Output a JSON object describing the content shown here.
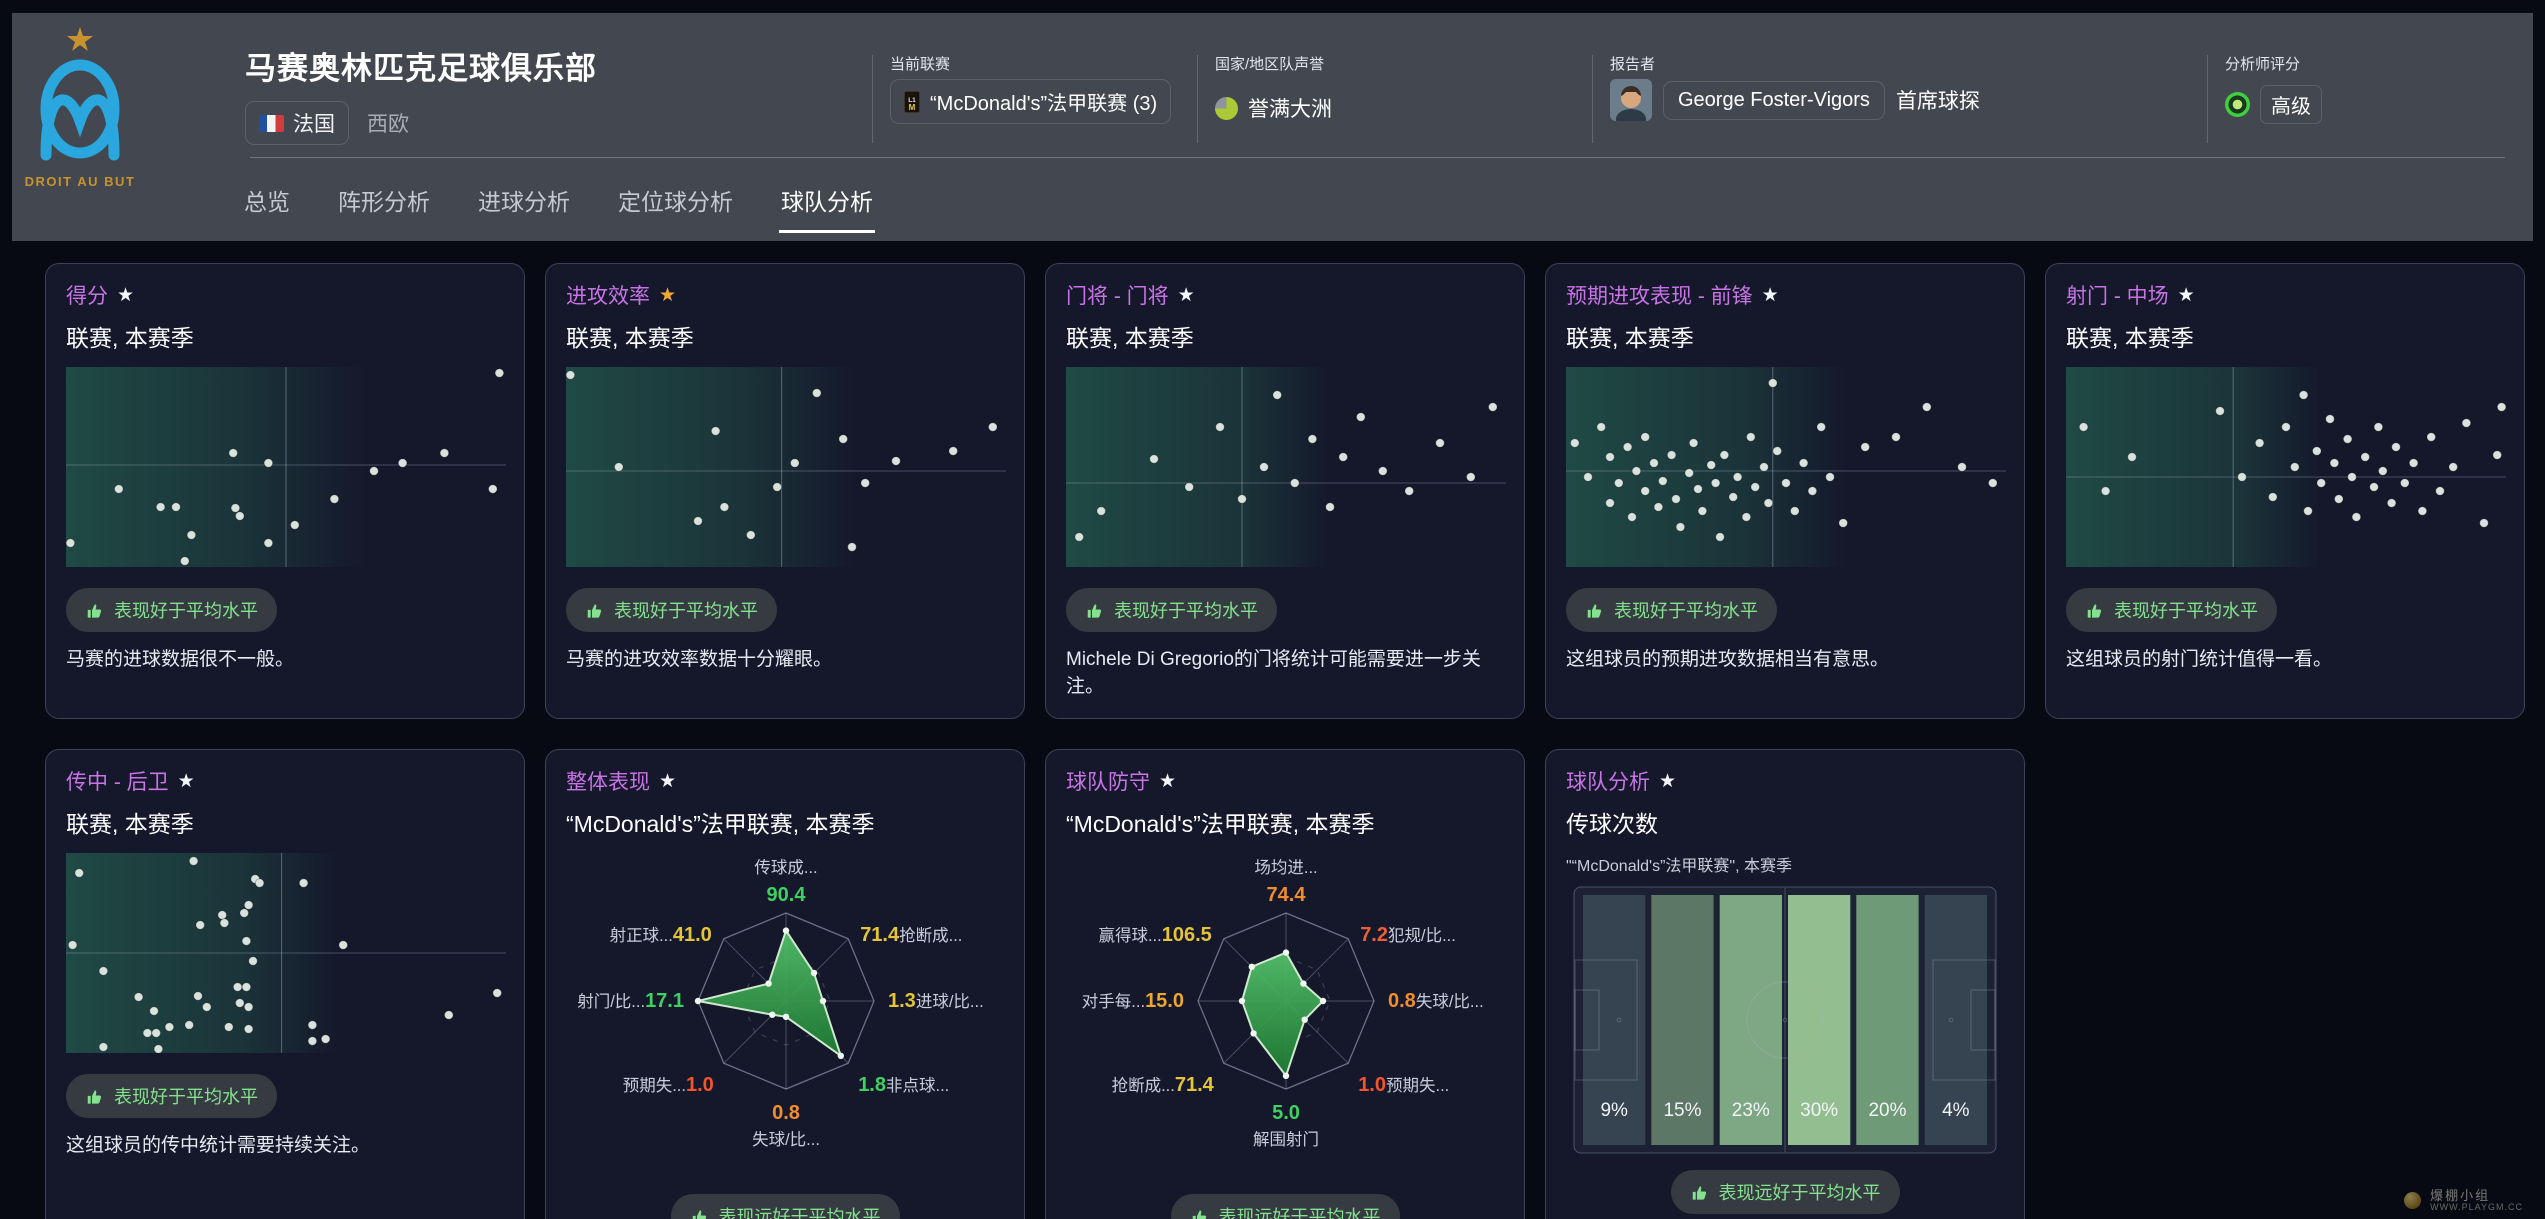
{
  "header": {
    "club_name": "马赛奥林匹克足球俱乐部",
    "motto": "DROIT AU BUT",
    "country": "法国",
    "region": "西欧",
    "sections": {
      "current_league": {
        "label": "当前联赛",
        "value": "“McDonald's”法甲联赛 (3)"
      },
      "nation_reputation": {
        "label": "国家/地区队声誉",
        "value": "誉满大洲"
      },
      "reporter": {
        "label": "报告者",
        "name": "George Foster-Vigors",
        "role": "首席球探"
      },
      "analyst_rating": {
        "label": "分析师评分",
        "value": "高级"
      }
    },
    "tabs": [
      {
        "label": "总览",
        "active": false
      },
      {
        "label": "阵形分析",
        "active": false
      },
      {
        "label": "进球分析",
        "active": false
      },
      {
        "label": "定位球分析",
        "active": false
      },
      {
        "label": "球队分析",
        "active": true
      }
    ]
  },
  "cards": [
    {
      "id": "score",
      "type": "scatter",
      "title": "得分",
      "star_color": "#f5f6fa",
      "subtitle": "联赛, 本赛季",
      "badge": "表现好于平均水平",
      "badge_align": "left",
      "desc": "马赛的进球数据很不一般。",
      "chart": {
        "type": "scatter",
        "vline": 50,
        "hline": 49,
        "gradient_end": 0.68,
        "points": [
          [
            98.5,
            3
          ],
          [
            38,
            43
          ],
          [
            46,
            48
          ],
          [
            86,
            43
          ],
          [
            76.5,
            48
          ],
          [
            70,
            52
          ],
          [
            12,
            61
          ],
          [
            61,
            66
          ],
          [
            97,
            61
          ],
          [
            21.5,
            70
          ],
          [
            25,
            70
          ],
          [
            38.5,
            70.5
          ],
          [
            39.5,
            74.5
          ],
          [
            52,
            79
          ],
          [
            28.5,
            84
          ],
          [
            1,
            88
          ],
          [
            46,
            88
          ],
          [
            27,
            97
          ]
        ]
      }
    },
    {
      "id": "attacking-efficiency",
      "type": "scatter",
      "title": "进攻效率",
      "star_color": "#efa832",
      "subtitle": "联赛, 本赛季",
      "badge": "表现好于平均水平",
      "badge_align": "left",
      "desc": "马赛的进攻效率数据十分耀眼。",
      "chart": {
        "type": "scatter",
        "vline": 49,
        "hline": 52,
        "gradient_end": 0.66,
        "points": [
          [
            1,
            4
          ],
          [
            12,
            50
          ],
          [
            30,
            77
          ],
          [
            34,
            32
          ],
          [
            36,
            70
          ],
          [
            42,
            84
          ],
          [
            48,
            60
          ],
          [
            52,
            48
          ],
          [
            57,
            13
          ],
          [
            63,
            36
          ],
          [
            65,
            90
          ],
          [
            68,
            58
          ],
          [
            75,
            47
          ],
          [
            88,
            42
          ],
          [
            97,
            30
          ]
        ]
      }
    },
    {
      "id": "goalkeeper",
      "type": "scatter",
      "title": "门将 - 门将",
      "star_color": "#f5f6fa",
      "subtitle": "联赛, 本赛季",
      "badge": "表现好于平均水平",
      "badge_align": "left",
      "desc": "Michele Di Gregorio的门将统计可能需要进一步关注。",
      "chart": {
        "type": "scatter",
        "vline": 40,
        "hline": 58,
        "gradient_end": 0.6,
        "points": [
          [
            3,
            85
          ],
          [
            8,
            72
          ],
          [
            20,
            46
          ],
          [
            28,
            60
          ],
          [
            35,
            30
          ],
          [
            40,
            66
          ],
          [
            45,
            50
          ],
          [
            48,
            14
          ],
          [
            52,
            58
          ],
          [
            56,
            36
          ],
          [
            60,
            70
          ],
          [
            63,
            45
          ],
          [
            67,
            25
          ],
          [
            72,
            52
          ],
          [
            78,
            62
          ],
          [
            85,
            38
          ],
          [
            92,
            55
          ],
          [
            97,
            20
          ]
        ]
      }
    },
    {
      "id": "expected-attacking-forwards",
      "type": "scatter",
      "title": "预期进攻表现 - 前锋",
      "star_color": "#f5f6fa",
      "subtitle": "联赛, 本赛季",
      "badge": "表现好于平均水平",
      "badge_align": "left",
      "desc": "这组球员的预期进攻数据相当有意思。",
      "chart": {
        "type": "scatter",
        "vline": 47,
        "hline": 52,
        "gradient_end": 0.64,
        "points": [
          [
            2,
            38
          ],
          [
            5,
            55
          ],
          [
            8,
            30
          ],
          [
            10,
            45
          ],
          [
            10,
            68
          ],
          [
            12,
            58
          ],
          [
            14,
            40
          ],
          [
            15,
            75
          ],
          [
            16,
            52
          ],
          [
            18,
            62
          ],
          [
            18,
            35
          ],
          [
            20,
            48
          ],
          [
            21,
            70
          ],
          [
            22,
            57
          ],
          [
            24,
            44
          ],
          [
            25,
            66
          ],
          [
            26,
            80
          ],
          [
            28,
            53
          ],
          [
            29,
            38
          ],
          [
            30,
            61
          ],
          [
            31,
            72
          ],
          [
            33,
            49
          ],
          [
            34,
            58
          ],
          [
            35,
            85
          ],
          [
            36,
            44
          ],
          [
            38,
            65
          ],
          [
            39,
            55
          ],
          [
            41,
            75
          ],
          [
            42,
            35
          ],
          [
            43,
            60
          ],
          [
            45,
            50
          ],
          [
            46,
            68
          ],
          [
            47,
            8
          ],
          [
            48,
            42
          ],
          [
            50,
            58
          ],
          [
            52,
            72
          ],
          [
            54,
            48
          ],
          [
            56,
            62
          ],
          [
            58,
            30
          ],
          [
            60,
            55
          ],
          [
            63,
            78
          ],
          [
            68,
            40
          ],
          [
            75,
            35
          ],
          [
            82,
            20
          ],
          [
            90,
            50
          ],
          [
            97,
            58
          ]
        ]
      }
    },
    {
      "id": "shots-midfield",
      "type": "scatter",
      "title": "射门 - 中场",
      "star_color": "#f5f6fa",
      "subtitle": "联赛, 本赛季",
      "badge": "表现好于平均水平",
      "badge_align": "left",
      "desc": "这组球员的射门统计值得一看。",
      "chart": {
        "type": "scatter",
        "vline": 38,
        "hline": 55,
        "gradient_end": 0.58,
        "points": [
          [
            4,
            30
          ],
          [
            9,
            62
          ],
          [
            15,
            45
          ],
          [
            35,
            22
          ],
          [
            40,
            55
          ],
          [
            44,
            38
          ],
          [
            47,
            65
          ],
          [
            50,
            30
          ],
          [
            52,
            50
          ],
          [
            54,
            14
          ],
          [
            55,
            72
          ],
          [
            57,
            42
          ],
          [
            58,
            58
          ],
          [
            60,
            26
          ],
          [
            61,
            48
          ],
          [
            62,
            66
          ],
          [
            64,
            36
          ],
          [
            65,
            55
          ],
          [
            66,
            75
          ],
          [
            68,
            45
          ],
          [
            70,
            60
          ],
          [
            71,
            30
          ],
          [
            72,
            52
          ],
          [
            74,
            68
          ],
          [
            75,
            40
          ],
          [
            77,
            58
          ],
          [
            79,
            48
          ],
          [
            81,
            72
          ],
          [
            83,
            35
          ],
          [
            85,
            62
          ],
          [
            88,
            50
          ],
          [
            91,
            28
          ],
          [
            95,
            78
          ],
          [
            98,
            44
          ],
          [
            99,
            20
          ]
        ]
      }
    },
    {
      "id": "crosses-defenders",
      "type": "scatter",
      "title": "传中 - 后卫",
      "star_color": "#f5f6fa",
      "subtitle": "联赛, 本赛季",
      "badge": "表现好于平均水平",
      "badge_align": "left",
      "desc": "这组球员的传中统计需要持续关注。",
      "chart": {
        "type": "scatter",
        "vline": 49,
        "hline": 50,
        "gradient_end": 0.62,
        "points": [
          [
            29,
            4
          ],
          [
            3,
            10
          ],
          [
            43,
            13
          ],
          [
            44,
            15
          ],
          [
            54,
            15
          ],
          [
            41.5,
            26
          ],
          [
            40.5,
            30
          ],
          [
            35.5,
            31
          ],
          [
            36,
            35
          ],
          [
            30.5,
            36
          ],
          [
            1.5,
            46
          ],
          [
            41,
            44
          ],
          [
            63,
            46
          ],
          [
            42.5,
            54
          ],
          [
            8.5,
            59
          ],
          [
            16.5,
            72
          ],
          [
            20,
            79
          ],
          [
            30,
            71.5
          ],
          [
            32,
            77
          ],
          [
            39,
            67
          ],
          [
            41,
            67
          ],
          [
            39.5,
            75
          ],
          [
            41.5,
            77
          ],
          [
            23.5,
            87
          ],
          [
            28,
            86
          ],
          [
            18.5,
            90
          ],
          [
            20.5,
            90
          ],
          [
            37,
            87
          ],
          [
            41.5,
            88
          ],
          [
            56,
            86
          ],
          [
            56,
            94
          ],
          [
            59,
            93
          ],
          [
            98,
            70
          ],
          [
            87,
            81
          ],
          [
            8.5,
            97
          ],
          [
            21,
            98
          ]
        ]
      }
    },
    {
      "id": "overall-performance",
      "type": "radar",
      "title": "整体表现",
      "star_color": "#f5f6fa",
      "subtitle": "“McDonald's”法甲联赛, 本赛季",
      "badge": "表现远好于平均水平",
      "badge_align": "center",
      "chart": {
        "type": "radar",
        "axes": [
          {
            "label": "传球成...",
            "value": "90.4",
            "color": "#3ed160",
            "r": 0.8
          },
          {
            "label": "抢断成...",
            "value": "71.4",
            "color": "#e5c438",
            "r": 0.45
          },
          {
            "label": "进球/比...",
            "value": "1.3",
            "color": "#e5c438",
            "r": 0.42
          },
          {
            "label": "非点球...",
            "value": "1.8",
            "color": "#3ed160",
            "r": 0.88
          },
          {
            "label": "失球/比...",
            "value": "0.8",
            "color": "#ef8d2f",
            "r": 0.18
          },
          {
            "label": "预期失...",
            "value": "1.0",
            "color": "#f2552c",
            "r": 0.22
          },
          {
            "label": "射门/比...",
            "value": "17.1",
            "color": "#3ed160",
            "r": 1.0
          },
          {
            "label": "射正球...",
            "value": "41.0",
            "color": "#e5c438",
            "r": 0.28
          }
        ]
      }
    },
    {
      "id": "team-defence",
      "type": "radar",
      "title": "球队防守",
      "star_color": "#f5f6fa",
      "subtitle": "“McDonald's”法甲联赛, 本赛季",
      "badge": "表现远好于平均水平",
      "badge_align": "center",
      "chart": {
        "type": "radar",
        "axes": [
          {
            "label": "场均进...",
            "value": "74.4",
            "color": "#ef8d2f",
            "r": 0.55
          },
          {
            "label": "犯规/比...",
            "value": "7.2",
            "color": "#ee5f35",
            "r": 0.28
          },
          {
            "label": "失球/比...",
            "value": "0.8",
            "color": "#ef8d2f",
            "r": 0.42
          },
          {
            "label": "预期失...",
            "value": "1.0",
            "color": "#f2552c",
            "r": 0.3
          },
          {
            "label": "解围射门",
            "value": "5.0",
            "color": "#3ed160",
            "r": 0.85
          },
          {
            "label": "抢断成...",
            "value": "71.4",
            "color": "#e5c438",
            "r": 0.52
          },
          {
            "label": "对手每...",
            "value": "15.0",
            "color": "#eda62f",
            "r": 0.5
          },
          {
            "label": "赢得球...",
            "value": "106.5",
            "color": "#e5c438",
            "r": 0.55
          }
        ]
      }
    },
    {
      "id": "team-analysis-passes",
      "type": "pitch",
      "title": "球队分析",
      "star_color": "#f5f6fa",
      "subtitle": "传球次数",
      "subtitle2": "\"“McDonald's”法甲联赛\", 本赛季",
      "badge": "表现远好于平均水平",
      "badge_align": "center",
      "chart": {
        "type": "pitch-zones",
        "zones": [
          {
            "pct": "9%",
            "color": "rgba(56,70,82,0.92)"
          },
          {
            "pct": "15%",
            "color": "#5c7765"
          },
          {
            "pct": "23%",
            "color": "#7ea883"
          },
          {
            "pct": "30%",
            "color": "#93be90"
          },
          {
            "pct": "20%",
            "color": "#6f9a77"
          },
          {
            "pct": "4%",
            "color": "rgba(56,70,82,0.92)"
          }
        ]
      }
    }
  ],
  "watermark": {
    "line1": "爆棚小组",
    "line2": "WWW.PLAYGM.CC"
  }
}
